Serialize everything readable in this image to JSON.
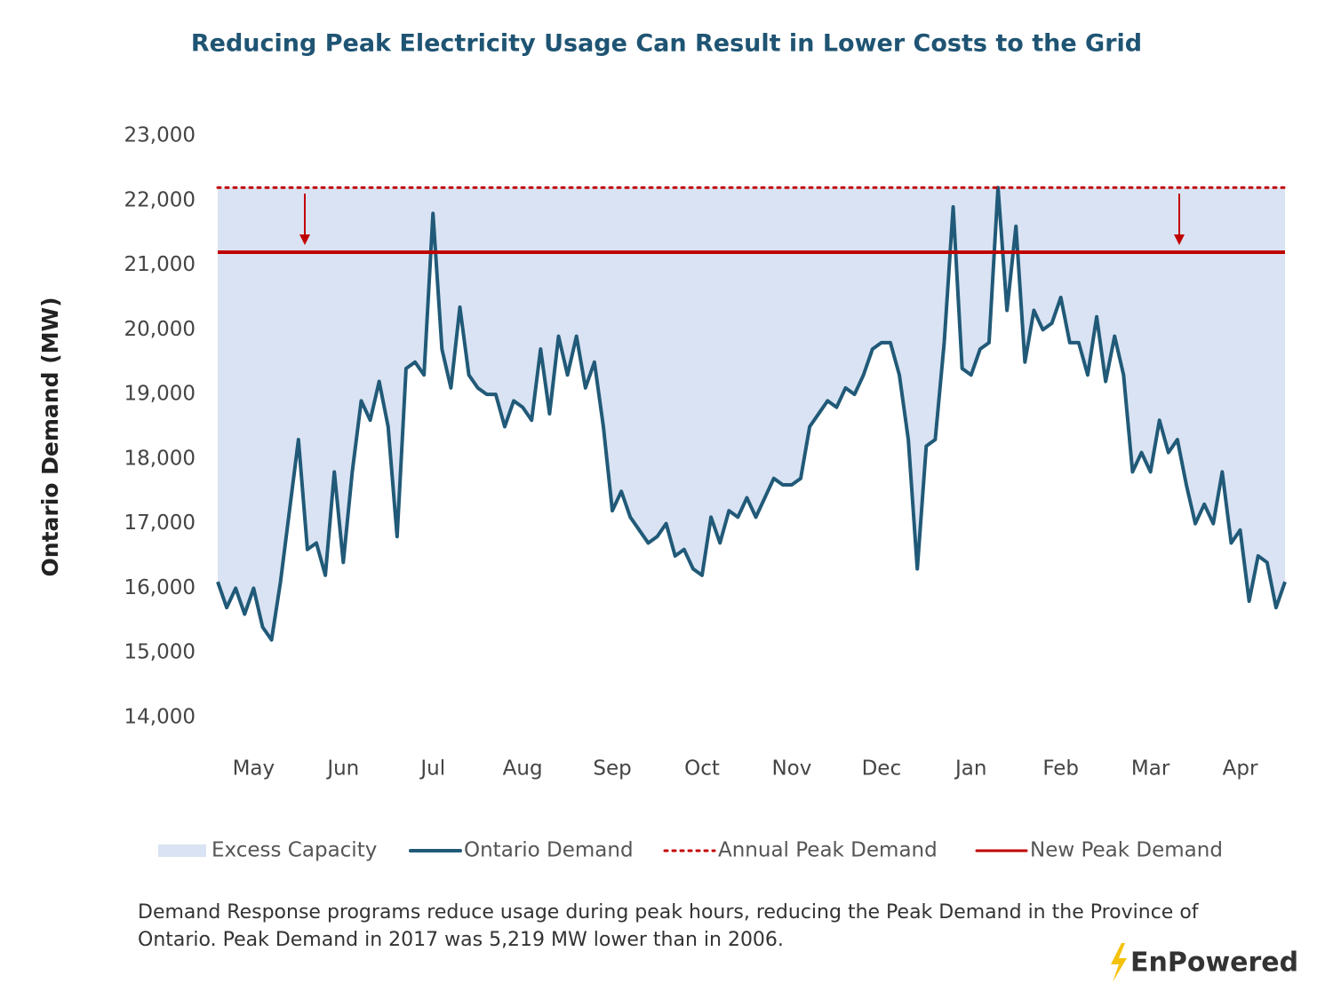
{
  "chart_data": {
    "type": "line",
    "title": "Reducing Peak Electricity Usage Can Result in Lower Costs to the Grid",
    "y_label": "Ontario Demand (MW)",
    "note": "Demand Response programs reduce usage during peak hours, reducing the Peak Demand in the Province of Ontario. Peak Demand in 2017 was 5,219 MW lower than in 2006.",
    "ylim": [
      14000,
      23000
    ],
    "yticks": [
      {
        "value": 14000,
        "label": "14,000"
      },
      {
        "value": 15000,
        "label": "15,000"
      },
      {
        "value": 16000,
        "label": "16,000"
      },
      {
        "value": 17000,
        "label": "17,000"
      },
      {
        "value": 18000,
        "label": "18,000"
      },
      {
        "value": 19000,
        "label": "19,000"
      },
      {
        "value": 20000,
        "label": "20,000"
      },
      {
        "value": 21000,
        "label": "21,000"
      },
      {
        "value": 22000,
        "label": "22,000"
      },
      {
        "value": 23000,
        "label": "23,000"
      }
    ],
    "grid": false,
    "categories": [
      null,
      null,
      null,
      null,
      "May",
      null,
      null,
      null,
      null,
      null,
      null,
      null,
      null,
      null,
      "Jun",
      null,
      null,
      null,
      null,
      null,
      null,
      null,
      null,
      null,
      "Jul",
      null,
      null,
      null,
      null,
      null,
      null,
      null,
      null,
      null,
      "Aug",
      null,
      null,
      null,
      null,
      null,
      null,
      null,
      null,
      null,
      "Sep",
      null,
      null,
      null,
      null,
      null,
      null,
      null,
      null,
      null,
      "Oct",
      null,
      null,
      null,
      null,
      null,
      null,
      null,
      null,
      null,
      "Nov",
      null,
      null,
      null,
      null,
      null,
      null,
      null,
      null,
      null,
      "Dec",
      null,
      null,
      null,
      null,
      null,
      null,
      null,
      null,
      null,
      "Jan",
      null,
      null,
      null,
      null,
      null,
      null,
      null,
      null,
      null,
      "Feb",
      null,
      null,
      null,
      null,
      null,
      null,
      null,
      null,
      null,
      "Mar",
      null,
      null,
      null,
      null,
      null,
      null,
      null,
      null,
      null,
      "Apr",
      null,
      null,
      null,
      null,
      null
    ],
    "series": [
      {
        "name": "Excess Capacity",
        "color": "#dae3f3"
      },
      {
        "name": "Ontario Demand",
        "color": "#215a78",
        "values": [
          16100,
          15700,
          16000,
          15600,
          16000,
          15400,
          15200,
          16100,
          17200,
          18300,
          16600,
          16700,
          16200,
          17800,
          16400,
          17800,
          18900,
          18600,
          19200,
          18500,
          16800,
          19400,
          19500,
          19300,
          21800,
          19700,
          19100,
          20350,
          19300,
          19100,
          19000,
          19000,
          18500,
          18900,
          18800,
          18600,
          19700,
          18700,
          19900,
          19300,
          19900,
          19100,
          19500,
          18500,
          17200,
          17500,
          17100,
          16900,
          16700,
          16800,
          17000,
          16500,
          16600,
          16300,
          16200,
          17100,
          16700,
          17200,
          17100,
          17400,
          17100,
          17400,
          17700,
          17600,
          17600,
          17700,
          18500,
          18700,
          18900,
          18800,
          19100,
          19000,
          19300,
          19700,
          19800,
          19800,
          19300,
          18300,
          16300,
          18200,
          18300,
          19800,
          21900,
          19400,
          19300,
          19700,
          19800,
          22200,
          20300,
          21600,
          19500,
          20300,
          20000,
          20100,
          20500,
          19800,
          19800,
          19300,
          20200,
          19200,
          19900,
          19300,
          17800,
          18100,
          17800,
          18600,
          18100,
          18300,
          17600,
          17000,
          17300,
          17000,
          17800,
          16700,
          16900,
          15800,
          16500,
          16400,
          15700,
          16100
        ]
      },
      {
        "name": "Annual Peak Demand",
        "color": "#c00000",
        "value": 22200,
        "dash": true
      },
      {
        "name": "New Peak Demand",
        "color": "#c00000",
        "value": 21200
      }
    ]
  },
  "logo": "EnPowered"
}
